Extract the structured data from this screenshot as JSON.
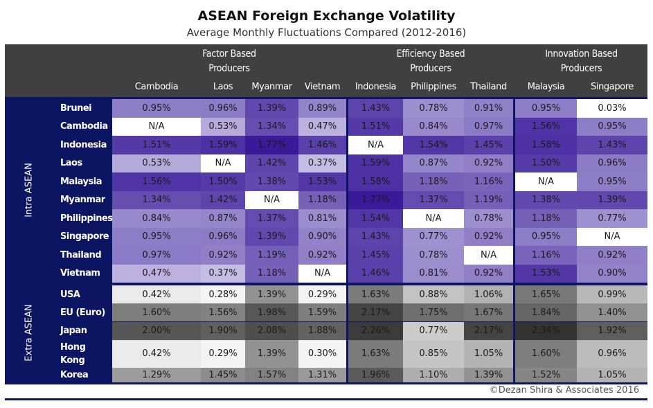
{
  "title": "ASEAN Foreign Exchange Volatility",
  "subtitle": "Average Monthly Fluctuations Compared (2012-2016)",
  "footer": "©Dezan Shira & Associates 2016",
  "colors": {
    "header_bg": "#404040",
    "frame": "#0b1561",
    "intra_low": "#d8d5ee",
    "intra_high": "#3a1a99",
    "extra_low": "#f4f4f4",
    "extra_high": "#333333",
    "na": "#ffffff"
  },
  "chart_data": {
    "type": "heatmap",
    "title": "ASEAN Foreign Exchange Volatility",
    "subtitle": "Average Monthly Fluctuations Compared (2012-2016)",
    "column_groups": [
      {
        "label": "Factor Based Producers",
        "columns": [
          "Cambodia",
          "Laos",
          "Myanmar",
          "Vietnam"
        ]
      },
      {
        "label": "Efficiency Based Producers",
        "columns": [
          "Indonesia",
          "Philippines",
          "Thailand"
        ]
      },
      {
        "label": "Innovation Based Producers",
        "columns": [
          "Malaysia",
          "Singapore"
        ]
      }
    ],
    "columns": [
      "Cambodia",
      "Laos",
      "Myanmar",
      "Vietnam",
      "Indonesia",
      "Philippines",
      "Thailand",
      "Malaysia",
      "Singapore"
    ],
    "row_groups": [
      {
        "label": "Intra ASEAN",
        "rows": [
          {
            "label": "Brunei",
            "values": [
              "0.95%",
              "0.96%",
              "1.39%",
              "0.89%",
              "1.43%",
              "0.78%",
              "0.91%",
              "0.95%",
              "0.03%"
            ]
          },
          {
            "label": "Cambodia",
            "values": [
              "N/A",
              "0.53%",
              "1.34%",
              "0.47%",
              "1.51%",
              "0.84%",
              "0.97%",
              "1.56%",
              "0.95%"
            ]
          },
          {
            "label": "Indonesia",
            "values": [
              "1.51%",
              "1.59%",
              "1.77%",
              "1.46%",
              "N/A",
              "1.54%",
              "1.45%",
              "1.58%",
              "1.43%"
            ]
          },
          {
            "label": "Laos",
            "values": [
              "0.53%",
              "N/A",
              "1.42%",
              "0.37%",
              "1.59%",
              "0.87%",
              "0.92%",
              "1.50%",
              "0.96%"
            ]
          },
          {
            "label": "Malaysia",
            "values": [
              "1.56%",
              "1.50%",
              "1.38%",
              "1.53%",
              "1.58%",
              "1.18%",
              "1.16%",
              "N/A",
              "0.95%"
            ]
          },
          {
            "label": "Myanmar",
            "values": [
              "1.34%",
              "1.42%",
              "N/A",
              "1.18%",
              "1.77%",
              "1.37%",
              "1.19%",
              "1.38%",
              "1.39%"
            ]
          },
          {
            "label": "Philippines",
            "values": [
              "0.84%",
              "0.87%",
              "1.37%",
              "0.81%",
              "1.54%",
              "N/A",
              "0.78%",
              "1.18%",
              "0.77%"
            ]
          },
          {
            "label": "Singapore",
            "values": [
              "0.95%",
              "0.96%",
              "1.39%",
              "0.90%",
              "1.43%",
              "0.77%",
              "0.92%",
              "0.95%",
              "N/A"
            ]
          },
          {
            "label": "Thailand",
            "values": [
              "0.97%",
              "0.92%",
              "1.19%",
              "0.92%",
              "1.45%",
              "0.78%",
              "N/A",
              "1.16%",
              "0.92%"
            ]
          },
          {
            "label": "Vietnam",
            "values": [
              "0.47%",
              "0.37%",
              "1.18%",
              "N/A",
              "1.46%",
              "0.81%",
              "0.92%",
              "1.53%",
              "0.90%"
            ]
          }
        ]
      },
      {
        "label": "Extra ASEAN",
        "rows": [
          {
            "label": "USA",
            "values": [
              "0.42%",
              "0.28%",
              "1.39%",
              "0.29%",
              "1.63%",
              "0.88%",
              "1.06%",
              "1.65%",
              "0.99%"
            ]
          },
          {
            "label": "EU (Euro)",
            "values": [
              "1.60%",
              "1.56%",
              "1.98%",
              "1.59%",
              "2.17%",
              "1.75%",
              "1.67%",
              "1.84%",
              "1.40%"
            ]
          },
          {
            "label": "Japan",
            "values": [
              "2.00%",
              "1.90%",
              "2.08%",
              "1.88%",
              "2.26%",
              "0.77%",
              "2.17%",
              "2.34%",
              "1.92%"
            ]
          },
          {
            "label": "Hong Kong",
            "values": [
              "0.42%",
              "0.29%",
              "1.39%",
              "0.30%",
              "1.63%",
              "0.85%",
              "1.05%",
              "1.60%",
              "0.96%"
            ]
          },
          {
            "label": "Korea",
            "values": [
              "1.29%",
              "1.45%",
              "1.57%",
              "1.31%",
              "1.96%",
              "1.10%",
              "1.39%",
              "1.52%",
              "1.05%"
            ]
          }
        ]
      }
    ]
  }
}
